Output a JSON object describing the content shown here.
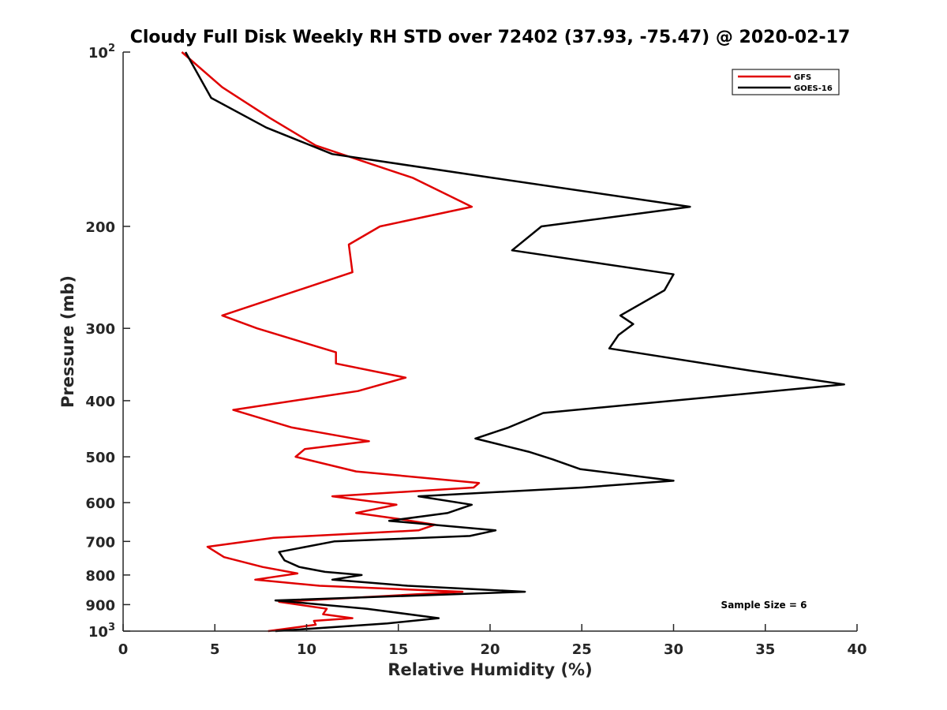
{
  "chart_data": {
    "type": "line",
    "title": "Cloudy Full Disk Weekly RH STD over 72402 (37.93, -75.47) @ 2020-02-17",
    "xlabel": "Relative Humidity (%)",
    "ylabel": "Pressure (mb)",
    "xlim": [
      0,
      40
    ],
    "ylim": [
      100,
      1000
    ],
    "yscale": "log",
    "yreversed": true,
    "grid": false,
    "legend_position": "top-right",
    "x_ticks": [
      0,
      5,
      10,
      15,
      20,
      25,
      30,
      35,
      40
    ],
    "y_ticks": [
      {
        "value": 100,
        "base": "10",
        "exp": "2"
      },
      {
        "value": 200,
        "label": "200"
      },
      {
        "value": 300,
        "label": "300"
      },
      {
        "value": 400,
        "label": "400"
      },
      {
        "value": 500,
        "label": "500"
      },
      {
        "value": 600,
        "label": "600"
      },
      {
        "value": 700,
        "label": "700"
      },
      {
        "value": 800,
        "label": "800"
      },
      {
        "value": 900,
        "label": "900"
      },
      {
        "value": 1000,
        "base": "10",
        "exp": "3"
      }
    ],
    "annotation": "Sample Size = 6",
    "series": [
      {
        "name": "GFS",
        "color": "#e00000",
        "points": [
          [
            3.2,
            100
          ],
          [
            5.4,
            115
          ],
          [
            8.0,
            130
          ],
          [
            10.5,
            145
          ],
          [
            15.8,
            165
          ],
          [
            19.0,
            185
          ],
          [
            14.0,
            200
          ],
          [
            12.3,
            215
          ],
          [
            12.5,
            240
          ],
          [
            5.4,
            285
          ],
          [
            7.3,
            300
          ],
          [
            11.6,
            330
          ],
          [
            11.6,
            345
          ],
          [
            15.4,
            365
          ],
          [
            12.8,
            385
          ],
          [
            6.0,
            415
          ],
          [
            9.2,
            445
          ],
          [
            13.4,
            470
          ],
          [
            9.9,
            485
          ],
          [
            9.4,
            500
          ],
          [
            12.7,
            530
          ],
          [
            19.4,
            555
          ],
          [
            19.1,
            565
          ],
          [
            11.4,
            585
          ],
          [
            14.9,
            605
          ],
          [
            12.7,
            625
          ],
          [
            15.0,
            640
          ],
          [
            17.0,
            655
          ],
          [
            16.1,
            670
          ],
          [
            8.2,
            690
          ],
          [
            4.6,
            715
          ],
          [
            5.5,
            745
          ],
          [
            7.6,
            775
          ],
          [
            9.5,
            795
          ],
          [
            7.2,
            815
          ],
          [
            10.7,
            835
          ],
          [
            18.5,
            855
          ],
          [
            8.5,
            890
          ],
          [
            11.1,
            915
          ],
          [
            10.9,
            935
          ],
          [
            12.5,
            950
          ],
          [
            10.4,
            960
          ],
          [
            10.5,
            975
          ],
          [
            7.9,
            1000
          ]
        ]
      },
      {
        "name": "GOES-16",
        "color": "#000000",
        "points": [
          [
            3.4,
            100
          ],
          [
            4.8,
            120
          ],
          [
            7.8,
            135
          ],
          [
            11.4,
            150
          ],
          [
            20.2,
            165
          ],
          [
            30.9,
            185
          ],
          [
            22.8,
            200
          ],
          [
            21.2,
            220
          ],
          [
            30.0,
            242
          ],
          [
            29.5,
            258
          ],
          [
            27.1,
            285
          ],
          [
            27.8,
            295
          ],
          [
            27.0,
            308
          ],
          [
            26.5,
            325
          ],
          [
            34.2,
            355
          ],
          [
            39.3,
            375
          ],
          [
            22.9,
            420
          ],
          [
            21.0,
            445
          ],
          [
            19.2,
            465
          ],
          [
            22.1,
            490
          ],
          [
            23.4,
            505
          ],
          [
            24.9,
            525
          ],
          [
            30.0,
            550
          ],
          [
            25.0,
            565
          ],
          [
            16.1,
            585
          ],
          [
            19.0,
            605
          ],
          [
            17.7,
            625
          ],
          [
            14.5,
            645
          ],
          [
            20.3,
            670
          ],
          [
            18.9,
            685
          ],
          [
            11.5,
            700
          ],
          [
            8.5,
            730
          ],
          [
            8.8,
            755
          ],
          [
            9.6,
            775
          ],
          [
            11.0,
            790
          ],
          [
            13.0,
            800
          ],
          [
            11.4,
            815
          ],
          [
            15.5,
            835
          ],
          [
            21.9,
            855
          ],
          [
            8.3,
            885
          ],
          [
            13.3,
            915
          ],
          [
            17.2,
            950
          ],
          [
            14.4,
            970
          ],
          [
            8.3,
            1000
          ]
        ]
      }
    ]
  }
}
